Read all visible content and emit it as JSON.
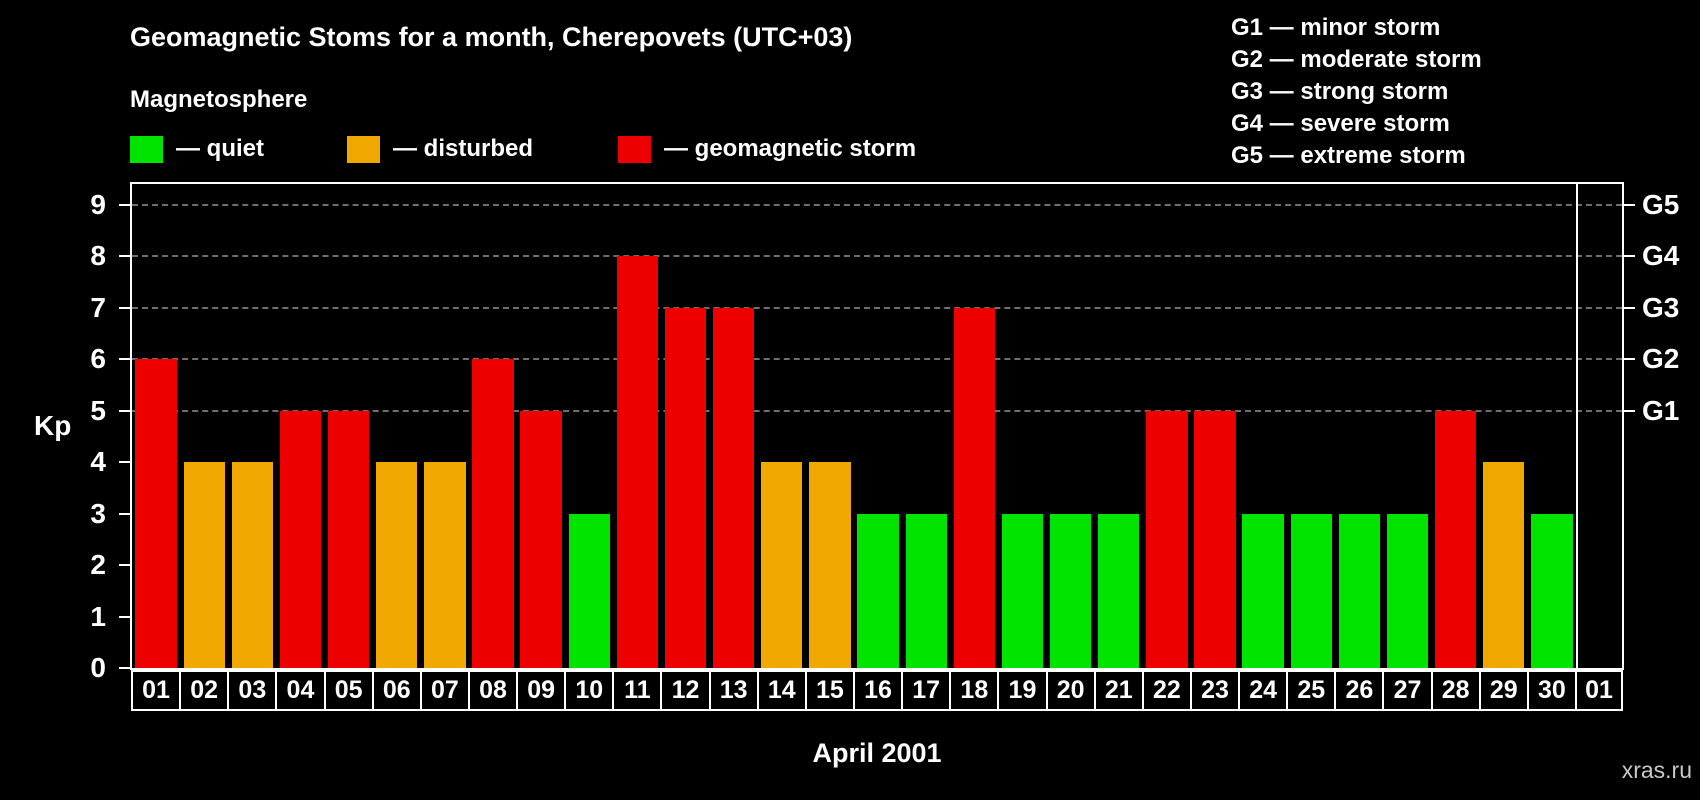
{
  "title": "Geomagnetic Stoms for a month, Cherepovets (UTC+03)",
  "legend": {
    "heading": "Magnetosphere",
    "items": [
      {
        "key": "quiet",
        "label": "— quiet",
        "color": "#00e400"
      },
      {
        "key": "disturbed",
        "label": "— disturbed",
        "color": "#f0a800"
      },
      {
        "key": "storm",
        "label": "— geomagnetic storm",
        "color": "#ee0000"
      }
    ]
  },
  "storm_scale_legend": [
    "G1 — minor storm",
    "G2 — moderate storm",
    "G3 — strong storm",
    "G4 — severe storm",
    "G5 — extreme storm"
  ],
  "watermark": "xras.ru",
  "chart_data": {
    "type": "bar",
    "title": "Geomagnetic Stoms for a month, Cherepovets (UTC+03)",
    "xlabel": "April 2001",
    "ylabel": "Kp",
    "ylim": [
      0,
      9
    ],
    "y_ticks": [
      0,
      1,
      2,
      3,
      4,
      5,
      6,
      7,
      8,
      9
    ],
    "right_axis": {
      "ticks": [
        {
          "label": "G1",
          "value": 5
        },
        {
          "label": "G2",
          "value": 6
        },
        {
          "label": "G3",
          "value": 7
        },
        {
          "label": "G4",
          "value": 8
        },
        {
          "label": "G5",
          "value": 9
        }
      ]
    },
    "grid": {
      "horizontal_dashed_at": [
        5,
        6,
        7,
        8,
        9
      ]
    },
    "legend_position": "top",
    "categories": [
      "01",
      "02",
      "03",
      "04",
      "05",
      "06",
      "07",
      "08",
      "09",
      "10",
      "11",
      "12",
      "13",
      "14",
      "15",
      "16",
      "17",
      "18",
      "19",
      "20",
      "21",
      "22",
      "23",
      "24",
      "25",
      "26",
      "27",
      "28",
      "29",
      "30",
      "01"
    ],
    "series": [
      {
        "name": "Kp index",
        "values": [
          6,
          4,
          4,
          5,
          5,
          4,
          4,
          6,
          5,
          3,
          8,
          7,
          7,
          4,
          4,
          3,
          3,
          7,
          3,
          3,
          3,
          5,
          5,
          3,
          3,
          3,
          3,
          5,
          4,
          3,
          null
        ],
        "statuses": [
          "storm",
          "disturbed",
          "disturbed",
          "storm",
          "storm",
          "disturbed",
          "disturbed",
          "storm",
          "storm",
          "quiet",
          "storm",
          "storm",
          "storm",
          "disturbed",
          "disturbed",
          "quiet",
          "quiet",
          "storm",
          "quiet",
          "quiet",
          "quiet",
          "storm",
          "storm",
          "quiet",
          "quiet",
          "quiet",
          "quiet",
          "storm",
          "disturbed",
          "quiet",
          null
        ]
      }
    ],
    "status_colors": {
      "quiet": "#00e400",
      "disturbed": "#f0a800",
      "storm": "#ee0000"
    }
  }
}
